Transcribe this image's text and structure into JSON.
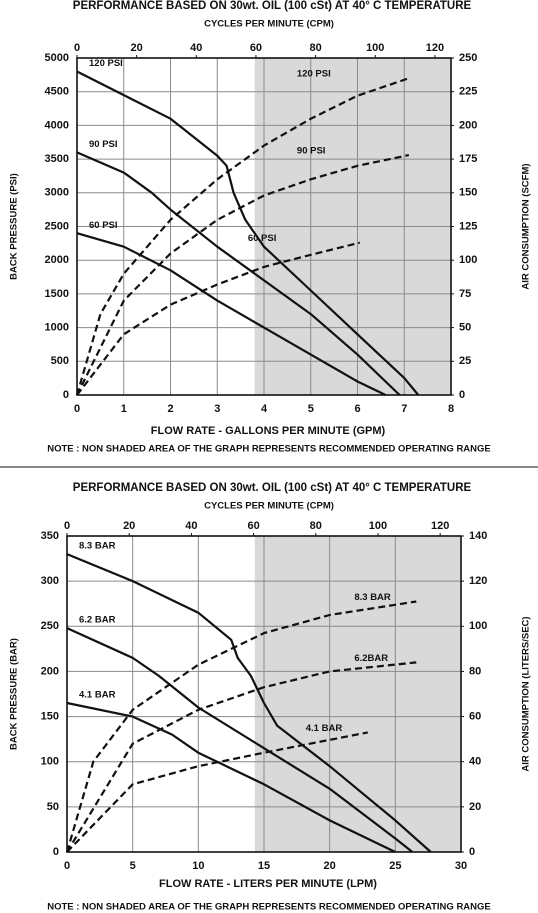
{
  "chart_data": [
    {
      "type": "line",
      "title": "PERFORMANCE  BASED ON 30wt. OIL (100 cSt) AT 40° C TEMPERATURE",
      "x2label": "CYCLES PER MINUTE (CPM)",
      "xlabel": "FLOW RATE - GALLONS PER MINUTE (GPM)",
      "ylabel": "BACK PRESSURE  (PSI)",
      "y2label": "AIR CONSUMPTION  (SCFM)",
      "note": "NOTE : NON SHADED AREA OF THE GRAPH REPRESENTS RECOMMENDED OPERATING RANGE",
      "xlim": [
        0,
        8
      ],
      "xticks": [
        0,
        1,
        2,
        3,
        4,
        5,
        6,
        7,
        8
      ],
      "x2lim": [
        0,
        125.4
      ],
      "x2ticks": [
        0,
        20,
        40,
        60,
        80,
        100,
        120
      ],
      "ylim": [
        0,
        5000
      ],
      "yticks": [
        0,
        500,
        1000,
        1500,
        2000,
        2500,
        3000,
        3500,
        4000,
        4500,
        5000
      ],
      "y2lim": [
        0,
        250
      ],
      "y2ticks": [
        0,
        25,
        50,
        75,
        100,
        125,
        150,
        175,
        200,
        225,
        250
      ],
      "grid": true,
      "shade_xrange": [
        3.8,
        8
      ],
      "shade_color": "#d9d9d9",
      "series": [
        {
          "name": "120 PSI",
          "color": "#111111",
          "style": "solid",
          "axis": "y",
          "x": [
            0,
            1,
            2,
            3,
            3.2,
            3.35,
            3.6,
            4,
            5,
            6,
            7,
            7.3
          ],
          "values": [
            4800,
            4450,
            4100,
            3550,
            3400,
            3000,
            2600,
            2200,
            1550,
            900,
            250,
            0
          ]
        },
        {
          "name": "90 PSI",
          "color": "#111111",
          "style": "solid",
          "axis": "y",
          "x": [
            0,
            1,
            1.6,
            2,
            3,
            4,
            5,
            6,
            6.9
          ],
          "values": [
            3600,
            3300,
            3000,
            2750,
            2200,
            1700,
            1200,
            600,
            0
          ]
        },
        {
          "name": "60 PSI",
          "color": "#111111",
          "style": "solid",
          "axis": "y",
          "x": [
            0,
            1,
            2,
            3,
            4,
            5,
            6,
            6.6
          ],
          "values": [
            2400,
            2200,
            1850,
            1400,
            1000,
            600,
            200,
            0
          ]
        },
        {
          "name": "120 PSI",
          "color": "#111111",
          "style": "dashed",
          "axis": "y2",
          "x": [
            0,
            0.5,
            1,
            2,
            3,
            4,
            5,
            6,
            7.1
          ],
          "values": [
            0,
            60,
            90,
            130,
            160,
            185,
            205,
            222,
            235
          ]
        },
        {
          "name": "90 PSI",
          "color": "#111111",
          "style": "dashed",
          "axis": "y2",
          "x": [
            0,
            1,
            2,
            3,
            4,
            5,
            6,
            7.1
          ],
          "values": [
            0,
            70,
            105,
            130,
            148,
            160,
            170,
            178
          ]
        },
        {
          "name": "60 PSI",
          "color": "#111111",
          "style": "dashed",
          "axis": "y2",
          "x": [
            0,
            1,
            2,
            3,
            4,
            5,
            6.05
          ],
          "values": [
            0,
            45,
            67,
            82,
            95,
            104,
            113
          ]
        }
      ]
    },
    {
      "type": "line",
      "title": "PERFORMANCE  BASED ON 30wt. OIL (100 cSt) AT 40° C TEMPERATURE",
      "x2label": "CYCLES PER MINUTE (CPM)",
      "xlabel": "FLOW RATE - LITERS PER MINUTE (LPM)",
      "ylabel": "BACK PRESSURE (BAR)",
      "y2label": "AIR CONSUMPTION  (LITERS/SEC)",
      "note": "NOTE : NON SHADED AREA OF THE GRAPH REPRESENTS RECOMMENDED OPERATING RANGE",
      "xlim": [
        0,
        30
      ],
      "xticks": [
        0,
        5,
        10,
        15,
        20,
        25,
        30
      ],
      "x2lim": [
        0,
        126.7
      ],
      "x2ticks": [
        0,
        20,
        40,
        60,
        80,
        100,
        120
      ],
      "ylim": [
        0,
        350
      ],
      "yticks": [
        0,
        50,
        100,
        150,
        200,
        250,
        300,
        350
      ],
      "y2lim": [
        0,
        140
      ],
      "y2ticks": [
        0,
        20,
        40,
        60,
        80,
        100,
        120,
        140
      ],
      "grid": true,
      "shade_xrange": [
        14.3,
        30
      ],
      "shade_color": "#d9d9d9",
      "series": [
        {
          "name": "8.3 BAR",
          "color": "#111111",
          "style": "solid",
          "axis": "y",
          "x": [
            0,
            5,
            10,
            12.5,
            13,
            14,
            15,
            16,
            20,
            25,
            27.7
          ],
          "values": [
            330,
            300,
            265,
            235,
            215,
            195,
            165,
            140,
            95,
            35,
            0
          ]
        },
        {
          "name": "6.2 BAR",
          "color": "#111111",
          "style": "solid",
          "axis": "y",
          "x": [
            0,
            5,
            7,
            10,
            15,
            20,
            25,
            26.3
          ],
          "values": [
            248,
            215,
            195,
            160,
            115,
            70,
            15,
            0
          ]
        },
        {
          "name": "4.1 BAR",
          "color": "#111111",
          "style": "solid",
          "axis": "y",
          "x": [
            0,
            5,
            8,
            10,
            15,
            20,
            25
          ],
          "values": [
            165,
            150,
            130,
            110,
            75,
            35,
            0
          ]
        },
        {
          "name": "8.3 BAR",
          "color": "#111111",
          "style": "dashed",
          "axis": "y2",
          "x": [
            0,
            2,
            5,
            10,
            15,
            20,
            26.6
          ],
          "values": [
            0,
            40,
            63,
            83,
            97,
            105,
            111
          ]
        },
        {
          "name": "6.2BAR",
          "color": "#111111",
          "style": "dashed",
          "axis": "y2",
          "x": [
            0,
            5,
            10,
            15,
            20,
            26.6
          ],
          "values": [
            0,
            48,
            63,
            73,
            80,
            84
          ]
        },
        {
          "name": "4.1 BAR",
          "color": "#111111",
          "style": "dashed",
          "axis": "y2",
          "x": [
            0,
            5,
            10,
            15,
            22.9
          ],
          "values": [
            0,
            30,
            38,
            44,
            53
          ]
        }
      ]
    }
  ]
}
